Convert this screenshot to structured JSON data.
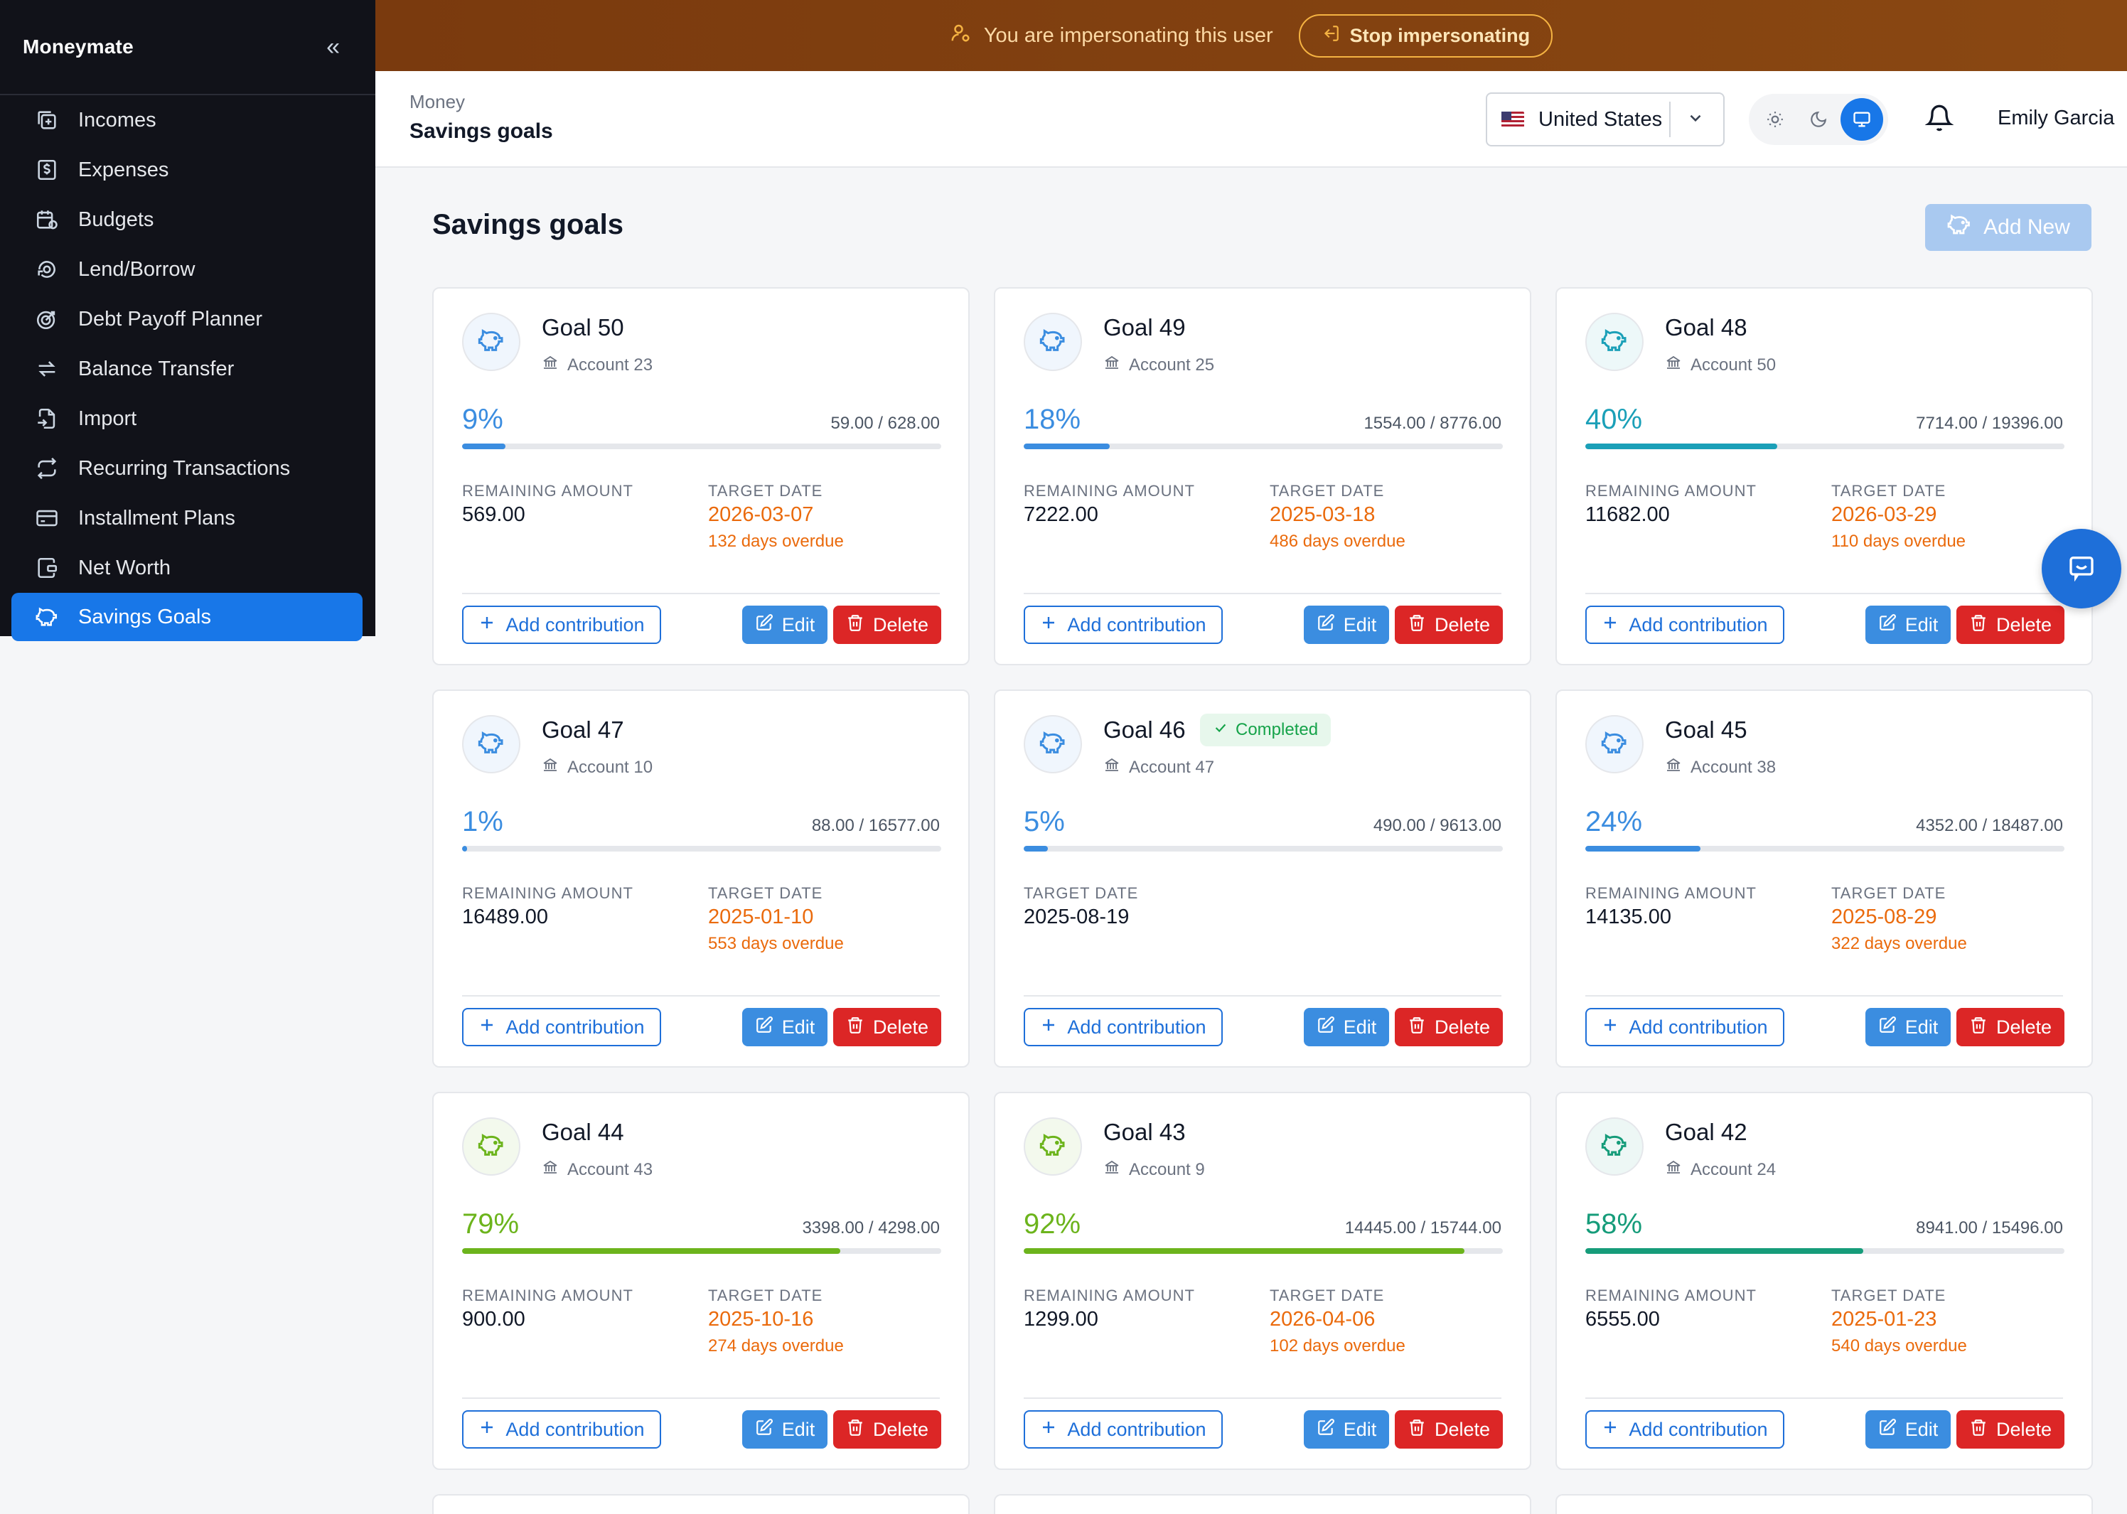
{
  "app": {
    "name": "Moneymate"
  },
  "sidebar": {
    "items": [
      {
        "label": "Incomes",
        "icon": "income-icon",
        "active": false
      },
      {
        "label": "Expenses",
        "icon": "dollar-receipt-icon",
        "active": false
      },
      {
        "label": "Budgets",
        "icon": "calendar-budget-icon",
        "active": false
      },
      {
        "label": "Lend/Borrow",
        "icon": "lend-borrow-icon",
        "active": false
      },
      {
        "label": "Debt Payoff Planner",
        "icon": "target-icon",
        "active": false
      },
      {
        "label": "Balance Transfer",
        "icon": "transfer-arrows-icon",
        "active": false
      },
      {
        "label": "Import",
        "icon": "import-file-icon",
        "active": false
      },
      {
        "label": "Recurring Transactions",
        "icon": "repeat-icon",
        "active": false
      },
      {
        "label": "Installment Plans",
        "icon": "credit-card-icon",
        "active": false
      },
      {
        "label": "Net Worth",
        "icon": "wallet-icon",
        "active": false
      },
      {
        "label": "Savings Goals",
        "icon": "piggy-bank-icon",
        "active": true
      }
    ]
  },
  "banner": {
    "message": "You are impersonating this user",
    "stop_label": "Stop impersonating"
  },
  "header": {
    "breadcrumb_parent": "Money",
    "breadcrumb_current": "Savings goals",
    "country": "United States",
    "user_name": "Emily Garcia"
  },
  "main": {
    "title": "Savings goals",
    "add_new_label": "Add New",
    "labels": {
      "remaining": "REMAINING AMOUNT",
      "target": "TARGET DATE",
      "add_contribution": "Add contribution",
      "edit": "Edit",
      "delete": "Delete",
      "completed": "Completed"
    },
    "goals": [
      {
        "name": "Goal 50",
        "account": "Account 23",
        "percent": "9%",
        "progress": 0.09,
        "saved": "59.00",
        "target": "628.00",
        "remaining": "569.00",
        "target_date": "2026-03-07",
        "overdue": "132 days overdue",
        "completed": false,
        "color": "#3b8de0"
      },
      {
        "name": "Goal 49",
        "account": "Account 25",
        "percent": "18%",
        "progress": 0.18,
        "saved": "1554.00",
        "target": "8776.00",
        "remaining": "7222.00",
        "target_date": "2025-03-18",
        "overdue": "486 days overdue",
        "completed": false,
        "color": "#3b8de0"
      },
      {
        "name": "Goal 48",
        "account": "Account 50",
        "percent": "40%",
        "progress": 0.4,
        "saved": "7714.00",
        "target": "19396.00",
        "remaining": "11682.00",
        "target_date": "2026-03-29",
        "overdue": "110 days overdue",
        "completed": false,
        "color": "#1ba0b8"
      },
      {
        "name": "Goal 47",
        "account": "Account 10",
        "percent": "1%",
        "progress": 0.01,
        "saved": "88.00",
        "target": "16577.00",
        "remaining": "16489.00",
        "target_date": "2025-01-10",
        "overdue": "553 days overdue",
        "completed": false,
        "color": "#3b8de0"
      },
      {
        "name": "Goal 46",
        "account": "Account 47",
        "percent": "5%",
        "progress": 0.05,
        "saved": "490.00",
        "target": "9613.00",
        "remaining": "",
        "target_date": "2025-08-19",
        "overdue": "",
        "completed": true,
        "color": "#3b8de0"
      },
      {
        "name": "Goal 45",
        "account": "Account 38",
        "percent": "24%",
        "progress": 0.24,
        "saved": "4352.00",
        "target": "18487.00",
        "remaining": "14135.00",
        "target_date": "2025-08-29",
        "overdue": "322 days overdue",
        "completed": false,
        "color": "#3b8de0"
      },
      {
        "name": "Goal 44",
        "account": "Account 43",
        "percent": "79%",
        "progress": 0.79,
        "saved": "3398.00",
        "target": "4298.00",
        "remaining": "900.00",
        "target_date": "2025-10-16",
        "overdue": "274 days overdue",
        "completed": false,
        "color": "#6cb41c"
      },
      {
        "name": "Goal 43",
        "account": "Account 9",
        "percent": "92%",
        "progress": 0.92,
        "saved": "14445.00",
        "target": "15744.00",
        "remaining": "1299.00",
        "target_date": "2026-04-06",
        "overdue": "102 days overdue",
        "completed": false,
        "color": "#6cb41c"
      },
      {
        "name": "Goal 42",
        "account": "Account 24",
        "percent": "58%",
        "progress": 0.58,
        "saved": "8941.00",
        "target": "15496.00",
        "remaining": "6555.00",
        "target_date": "2025-01-23",
        "overdue": "540 days overdue",
        "completed": false,
        "color": "#169c7a"
      }
    ]
  }
}
